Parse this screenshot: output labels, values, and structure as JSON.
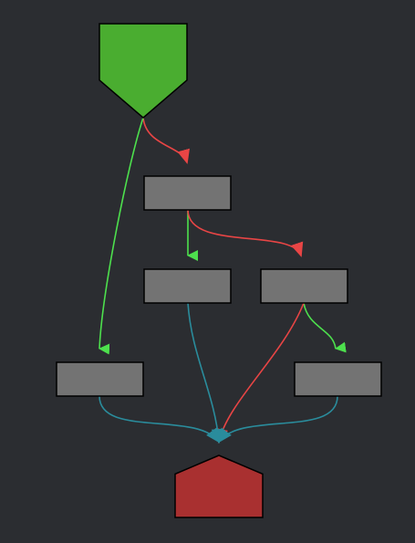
{
  "graph": {
    "background": "#2b2d31",
    "colors": {
      "start_fill": "#4aad30",
      "end_fill": "#a93030",
      "node_fill": "#737373",
      "node_stroke": "#000000",
      "edge_green": "#4de04d",
      "edge_red": "#e84545",
      "edge_teal": "#2a8c9c"
    },
    "nodes": [
      {
        "id": "start",
        "shape": "down-pentagon",
        "label": ""
      },
      {
        "id": "a",
        "shape": "rect",
        "label": ""
      },
      {
        "id": "b",
        "shape": "rect",
        "label": ""
      },
      {
        "id": "c",
        "shape": "rect",
        "label": ""
      },
      {
        "id": "d",
        "shape": "rect",
        "label": ""
      },
      {
        "id": "e",
        "shape": "rect",
        "label": ""
      },
      {
        "id": "end",
        "shape": "house",
        "label": ""
      }
    ],
    "edges": [
      {
        "from": "start",
        "to": "a",
        "color": "red"
      },
      {
        "from": "start",
        "to": "d",
        "color": "green"
      },
      {
        "from": "a",
        "to": "b",
        "color": "green"
      },
      {
        "from": "a",
        "to": "c",
        "color": "red"
      },
      {
        "from": "c",
        "to": "e",
        "color": "green"
      },
      {
        "from": "c",
        "to": "end",
        "color": "red"
      },
      {
        "from": "b",
        "to": "end",
        "color": "teal"
      },
      {
        "from": "d",
        "to": "end",
        "color": "teal"
      },
      {
        "from": "e",
        "to": "end",
        "color": "teal"
      }
    ]
  }
}
